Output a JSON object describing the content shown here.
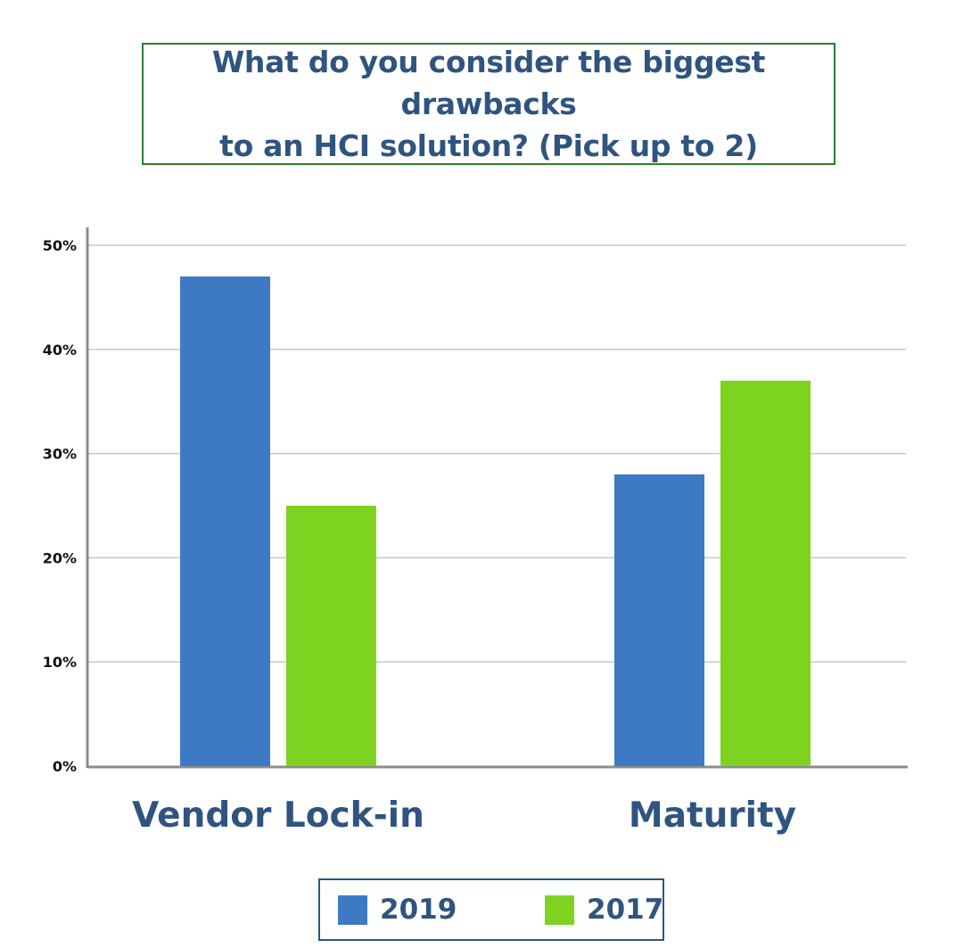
{
  "chart_title": "What do you consider the biggest drawbacks\nto an HCI solution? (Pick up to 2)",
  "colors": {
    "series_2019": "#3d7ac3",
    "series_2017": "#7ed321",
    "text": "#2f5480",
    "title_border": "#2e7d32",
    "grid": "#c8c8c8",
    "axis": "#8c8c8c"
  },
  "chart_data": {
    "type": "bar",
    "title": "What do you consider the biggest drawbacks to an HCI solution? (Pick up to 2)",
    "categories": [
      "Vendor Lock-in",
      "Maturity"
    ],
    "series": [
      {
        "name": "2019",
        "values": [
          47,
          28
        ]
      },
      {
        "name": "2017",
        "values": [
          25,
          37
        ]
      }
    ],
    "ylim": [
      0,
      50
    ],
    "yticks": [
      0,
      10,
      20,
      30,
      40,
      50
    ],
    "ytick_labels": [
      "0%",
      "10%",
      "20%",
      "30%",
      "40%",
      "50%"
    ],
    "xlabel": "",
    "ylabel": "",
    "grid": true,
    "legend_position": "bottom-center"
  },
  "legend": {
    "items": [
      {
        "label": "2019"
      },
      {
        "label": "2017"
      }
    ]
  }
}
